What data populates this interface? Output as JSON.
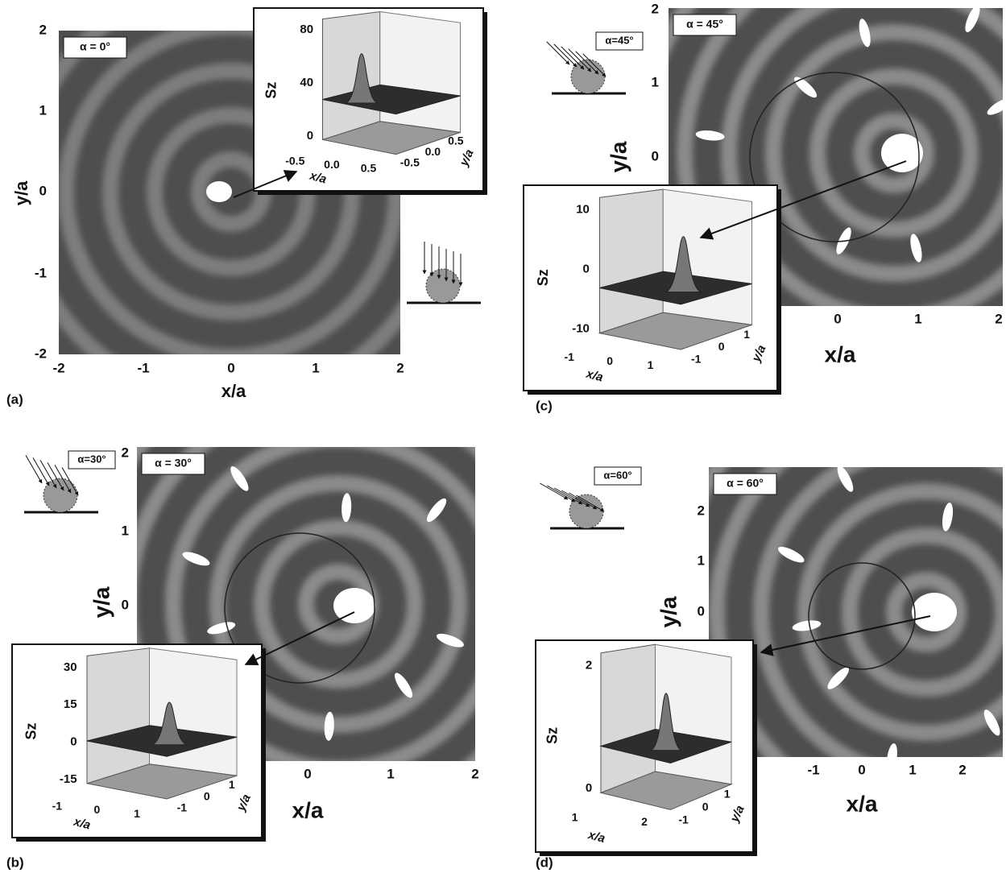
{
  "panels": [
    {
      "label": "(a)",
      "annotation": "α = 0°",
      "x_label": "x/a",
      "y_label": "y/a",
      "xticks": [
        "-2",
        "-1",
        "0",
        "1",
        "2"
      ],
      "yticks": [
        "2",
        "1",
        "0",
        "-1",
        "-2"
      ],
      "inset": {
        "z_label": "Sz",
        "x_label": "x/a",
        "y_label": "y/a",
        "zticks": [
          "0",
          "40",
          "80"
        ],
        "xticks": [
          "-0.5",
          "0.0",
          "0.5"
        ],
        "yticks": [
          "-0.5",
          "0.0",
          "0.5"
        ]
      }
    },
    {
      "label": "(b)",
      "annotation": "α = 30°",
      "schematic_label": "α=30°",
      "x_label": "x/a",
      "y_label": "y/a",
      "xticks": [
        "0",
        "1",
        "2"
      ],
      "yticks": [
        "2",
        "1",
        "0"
      ],
      "inset": {
        "z_label": "Sz",
        "x_label": "x/a",
        "y_label": "y/a",
        "zticks": [
          "-15",
          "0",
          "15",
          "30"
        ],
        "xticks": [
          "-1",
          "0",
          "1"
        ],
        "yticks": [
          "-1",
          "0",
          "1"
        ]
      }
    },
    {
      "label": "(c)",
      "annotation": "α = 45°",
      "schematic_label": "α=45°",
      "x_label": "x/a",
      "y_label": "y/a",
      "xticks": [
        "0",
        "1",
        "2"
      ],
      "yticks": [
        "2",
        "1",
        "0"
      ],
      "inset": {
        "z_label": "Sz",
        "x_label": "x/a",
        "y_label": "y/a",
        "zticks": [
          "-10",
          "0",
          "10"
        ],
        "xticks": [
          "-1",
          "0",
          "1"
        ],
        "yticks": [
          "-1",
          "0",
          "1"
        ]
      }
    },
    {
      "label": "(d)",
      "annotation": "α = 60°",
      "schematic_label": "α=60°",
      "x_label": "x/a",
      "y_label": "y/a",
      "xticks": [
        "-1",
        "0",
        "1",
        "2"
      ],
      "yticks": [
        "2",
        "1",
        "0"
      ],
      "inset": {
        "z_label": "Sz",
        "x_label": "x/a",
        "y_label": "y/a",
        "zticks": [
          "0",
          "2"
        ],
        "xticks": [
          "1",
          "2"
        ],
        "yticks": [
          "-1",
          "0",
          "1"
        ]
      }
    }
  ]
}
